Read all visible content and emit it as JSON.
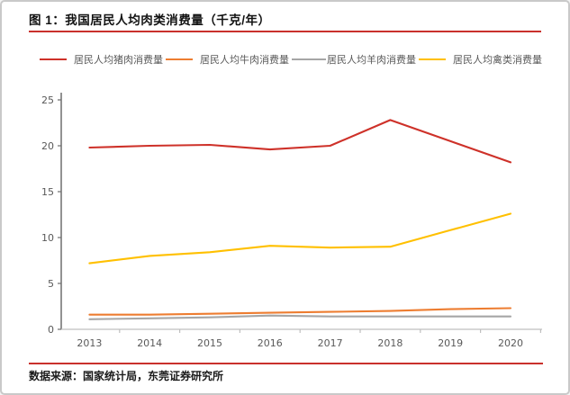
{
  "header": {
    "title": "图 1：我国居民人均肉类消费量（千克/年）"
  },
  "chart_data": {
    "type": "line",
    "title": "我国居民人均肉类消费量（千克/年）",
    "categories": [
      "2013",
      "2014",
      "2015",
      "2016",
      "2017",
      "2018",
      "2019",
      "2020"
    ],
    "series": [
      {
        "key": "pork",
        "name": "居民人均猪肉消费量",
        "color": "#ce3129",
        "values": [
          19.8,
          20.0,
          20.1,
          19.6,
          20.0,
          22.8,
          20.5,
          18.2
        ]
      },
      {
        "key": "beef",
        "name": "居民人均牛肉消费量",
        "color": "#ed7d31",
        "values": [
          1.6,
          1.6,
          1.7,
          1.8,
          1.9,
          2.0,
          2.2,
          2.3
        ]
      },
      {
        "key": "mutton",
        "name": "居民人均羊肉消费量",
        "color": "#a6a6a6",
        "values": [
          1.1,
          1.2,
          1.3,
          1.5,
          1.4,
          1.4,
          1.4,
          1.4
        ]
      },
      {
        "key": "poultry",
        "name": "居民人均禽类消费量",
        "color": "#ffc000",
        "values": [
          7.2,
          8.0,
          8.4,
          9.1,
          8.9,
          9.0,
          10.8,
          12.6
        ]
      }
    ],
    "xlabel": "",
    "ylabel": "",
    "ylim": [
      0,
      25
    ],
    "y_ticks": [
      0,
      5,
      10,
      15,
      20,
      25
    ],
    "grid": false,
    "legend_position": "top"
  },
  "footer": {
    "source": "数据来源：国家统计局，东莞证券研究所"
  },
  "colors": {
    "accent_rule": "#c9302c",
    "axis_y": "#6e6e6e",
    "axis_x": "#bfbfbf",
    "tick_text": "#595959"
  }
}
